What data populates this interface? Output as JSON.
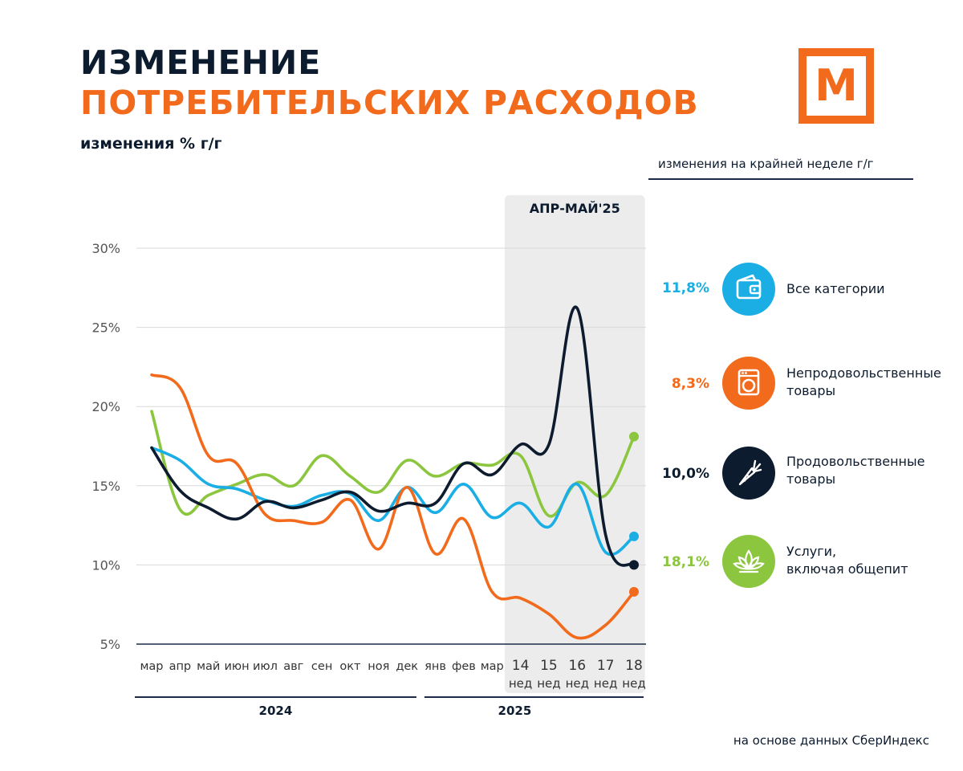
{
  "header": {
    "title_line1": "ИЗМЕНЕНИЕ",
    "title_line2": "ПОТРЕБИТЕЛЬСКИХ РАСХОДОВ",
    "subtitle": "изменения % г/г",
    "logo_letter": "М"
  },
  "legend": {
    "header": "изменения на крайней неделе г/г",
    "items": [
      {
        "value": "11,8%",
        "line1": "Все категории",
        "line2": "",
        "color": "#1aaee5",
        "icon": "wallet-icon"
      },
      {
        "value": "8,3%",
        "line1": "Непродовольственные",
        "line2": "товары",
        "color": "#f26a1b",
        "icon": "washing-machine-icon"
      },
      {
        "value": "10,0%",
        "line1": "Продовольственные",
        "line2": "товары",
        "color": "#0d1b2e",
        "icon": "carrot-icon"
      },
      {
        "value": "18,1%",
        "line1": "Услуги,",
        "line2": "включая общепит",
        "color": "#8cc63f",
        "icon": "lotus-icon"
      }
    ]
  },
  "chart_data": {
    "type": "line",
    "title": "ИЗМЕНЕНИЕ ПОТРЕБИТЕЛЬСКИХ РАСХОДОВ",
    "ylabel": "изменения % г/г",
    "ylim": [
      5,
      30
    ],
    "yticks": [
      30,
      25,
      20,
      15,
      10,
      5
    ],
    "ytick_labels": [
      "30%",
      "25%",
      "20%",
      "15%",
      "10%",
      "5%"
    ],
    "categories": [
      "мар",
      "апр",
      "май",
      "июн",
      "июл",
      "авг",
      "сен",
      "окт",
      "ноя",
      "дек",
      "янв",
      "фев",
      "мар",
      "14",
      "15",
      "16",
      "17",
      "18"
    ],
    "category_sublabels": [
      "",
      "",
      "",
      "",
      "",
      "",
      "",
      "",
      "",
      "",
      "",
      "",
      "",
      "нед",
      "нед",
      "нед",
      "нед",
      "нед"
    ],
    "year_groups": [
      {
        "label": "2024",
        "from": 0,
        "to": 9
      },
      {
        "label": "2025",
        "from": 10,
        "to": 17
      }
    ],
    "highlight": {
      "label": "АПР-МАЙ'25",
      "from": 13,
      "to": 17
    },
    "series": [
      {
        "name": "Все категории",
        "color": "#1aaee5",
        "end_value": 11.8,
        "values": [
          17.4,
          16.6,
          15.1,
          14.8,
          14.1,
          13.7,
          14.4,
          14.5,
          12.8,
          14.9,
          13.3,
          15.1,
          13.0,
          13.9,
          12.4,
          15.1,
          10.8,
          11.8
        ]
      },
      {
        "name": "Непродовольственные товары",
        "color": "#f26a1b",
        "end_value": 8.3,
        "values": [
          22.0,
          21.2,
          16.9,
          16.4,
          13.2,
          12.8,
          12.7,
          14.1,
          11.0,
          14.9,
          10.7,
          12.9,
          8.3,
          7.9,
          6.9,
          5.4,
          6.2,
          8.3
        ]
      },
      {
        "name": "Продовольственные товары",
        "color": "#0d1b2e",
        "end_value": 10.0,
        "values": [
          17.4,
          14.7,
          13.6,
          12.9,
          14.0,
          13.6,
          14.1,
          14.6,
          13.4,
          13.9,
          13.9,
          16.4,
          15.7,
          17.6,
          17.6,
          26.2,
          11.9,
          10.0
        ]
      },
      {
        "name": "Услуги, включая общепит",
        "color": "#8cc63f",
        "end_value": 18.1,
        "values": [
          19.7,
          13.5,
          14.4,
          15.1,
          15.7,
          15.0,
          16.9,
          15.6,
          14.6,
          16.6,
          15.6,
          16.4,
          16.3,
          16.9,
          13.1,
          15.2,
          14.4,
          18.1
        ]
      }
    ]
  },
  "footer": {
    "source": "на основе данных СберИндекс"
  }
}
